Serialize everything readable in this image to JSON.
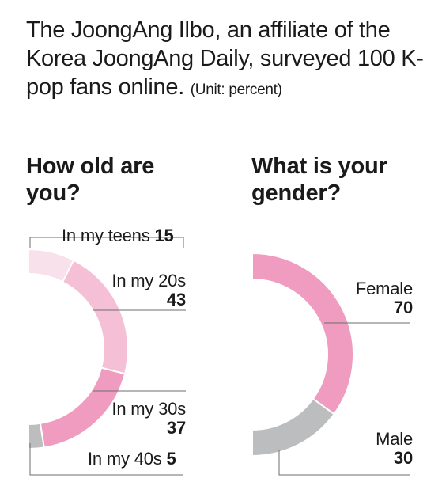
{
  "intro": {
    "text": "The JoongAng Ilbo, an affiliate of the Korea JoongAng Daily, surveyed 100 K-pop fans online.",
    "unit": "(Unit: percent)"
  },
  "colors": {
    "teens": "#f9e1ec",
    "twenties": "#f5bfd6",
    "thirties": "#f09bc0",
    "forties": "#bcbdbf",
    "female": "#f09bc0",
    "male": "#bcbdbf",
    "leader": "#6d6e71"
  },
  "chart_data": [
    {
      "type": "pie",
      "title": "How old are you?",
      "categories": [
        "In my teens",
        "In my 20s",
        "In my 30s",
        "In my 40s"
      ],
      "values": [
        15,
        43,
        37,
        5
      ]
    },
    {
      "type": "pie",
      "title": "What is your gender?",
      "categories": [
        "Female",
        "Male"
      ],
      "values": [
        70,
        30
      ]
    }
  ]
}
